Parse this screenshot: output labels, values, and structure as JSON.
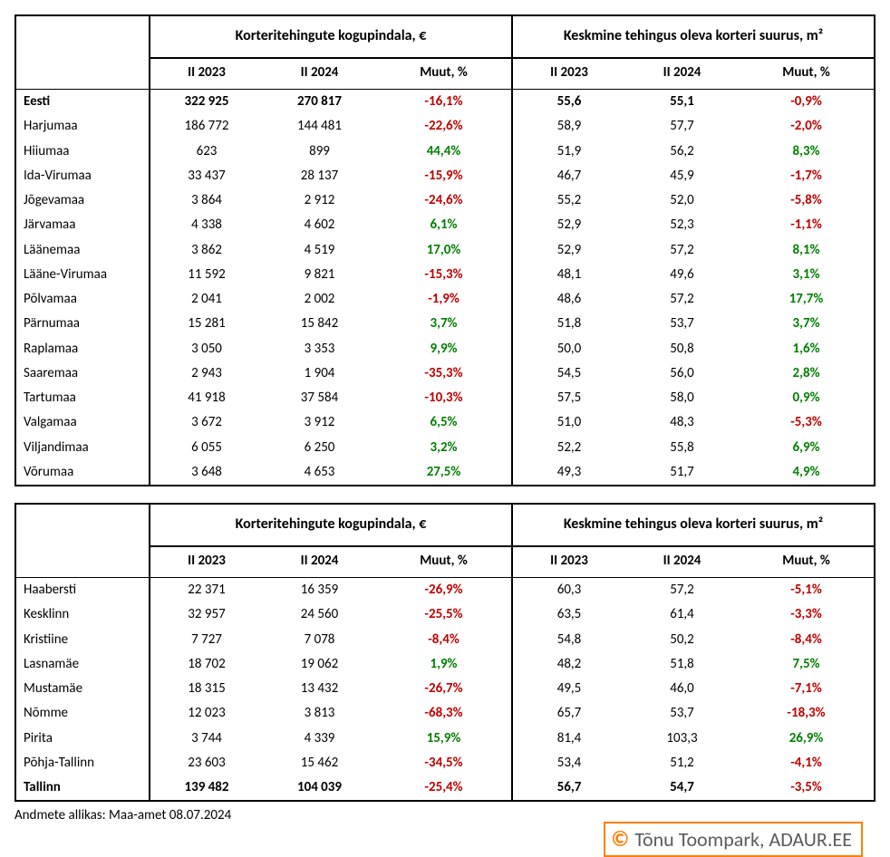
{
  "headers": {
    "group_area": "Korteritehingute kogupindala, €",
    "group_size": "Keskmine tehingus oleva korteri suurus, m²",
    "col_y1": "II 2023",
    "col_y2": "II 2024",
    "col_chg": "Muut, %"
  },
  "colors": {
    "neg": "#c00000",
    "pos": "#008000",
    "border": "#000000",
    "credit_border": "#ff7f00",
    "credit_text": "#5b5b5b"
  },
  "table1": {
    "rows": [
      {
        "label": "Eesti",
        "a1": "322 925",
        "a2": "270 817",
        "ac": "-16,1%",
        "as": "neg",
        "s1": "55,6",
        "s2": "55,1",
        "sc": "-0,9%",
        "ss": "neg",
        "bold": true
      },
      {
        "label": "Harjumaa",
        "a1": "186 772",
        "a2": "144 481",
        "ac": "-22,6%",
        "as": "neg",
        "s1": "58,9",
        "s2": "57,7",
        "sc": "-2,0%",
        "ss": "neg"
      },
      {
        "label": "Hiiumaa",
        "a1": "623",
        "a2": "899",
        "ac": "44,4%",
        "as": "pos",
        "s1": "51,9",
        "s2": "56,2",
        "sc": "8,3%",
        "ss": "pos"
      },
      {
        "label": "Ida-Virumaa",
        "a1": "33 437",
        "a2": "28 137",
        "ac": "-15,9%",
        "as": "neg",
        "s1": "46,7",
        "s2": "45,9",
        "sc": "-1,7%",
        "ss": "neg"
      },
      {
        "label": "Jõgevamaa",
        "a1": "3 864",
        "a2": "2 912",
        "ac": "-24,6%",
        "as": "neg",
        "s1": "55,2",
        "s2": "52,0",
        "sc": "-5,8%",
        "ss": "neg"
      },
      {
        "label": "Järvamaa",
        "a1": "4 338",
        "a2": "4 602",
        "ac": "6,1%",
        "as": "pos",
        "s1": "52,9",
        "s2": "52,3",
        "sc": "-1,1%",
        "ss": "neg"
      },
      {
        "label": "Läänemaa",
        "a1": "3 862",
        "a2": "4 519",
        "ac": "17,0%",
        "as": "pos",
        "s1": "52,9",
        "s2": "57,2",
        "sc": "8,1%",
        "ss": "pos"
      },
      {
        "label": "Lääne-Virumaa",
        "a1": "11 592",
        "a2": "9 821",
        "ac": "-15,3%",
        "as": "neg",
        "s1": "48,1",
        "s2": "49,6",
        "sc": "3,1%",
        "ss": "pos"
      },
      {
        "label": "Põlvamaa",
        "a1": "2 041",
        "a2": "2 002",
        "ac": "-1,9%",
        "as": "neg",
        "s1": "48,6",
        "s2": "57,2",
        "sc": "17,7%",
        "ss": "pos"
      },
      {
        "label": "Pärnumaa",
        "a1": "15 281",
        "a2": "15 842",
        "ac": "3,7%",
        "as": "pos",
        "s1": "51,8",
        "s2": "53,7",
        "sc": "3,7%",
        "ss": "pos"
      },
      {
        "label": "Raplamaa",
        "a1": "3 050",
        "a2": "3 353",
        "ac": "9,9%",
        "as": "pos",
        "s1": "50,0",
        "s2": "50,8",
        "sc": "1,6%",
        "ss": "pos"
      },
      {
        "label": "Saaremaa",
        "a1": "2 943",
        "a2": "1 904",
        "ac": "-35,3%",
        "as": "neg",
        "s1": "54,5",
        "s2": "56,0",
        "sc": "2,8%",
        "ss": "pos"
      },
      {
        "label": "Tartumaa",
        "a1": "41 918",
        "a2": "37 584",
        "ac": "-10,3%",
        "as": "neg",
        "s1": "57,5",
        "s2": "58,0",
        "sc": "0,9%",
        "ss": "pos"
      },
      {
        "label": "Valgamaa",
        "a1": "3 672",
        "a2": "3 912",
        "ac": "6,5%",
        "as": "pos",
        "s1": "51,0",
        "s2": "48,3",
        "sc": "-5,3%",
        "ss": "neg"
      },
      {
        "label": "Viljandimaa",
        "a1": "6 055",
        "a2": "6 250",
        "ac": "3,2%",
        "as": "pos",
        "s1": "52,2",
        "s2": "55,8",
        "sc": "6,9%",
        "ss": "pos"
      },
      {
        "label": "Võrumaa",
        "a1": "3 648",
        "a2": "4 653",
        "ac": "27,5%",
        "as": "pos",
        "s1": "49,3",
        "s2": "51,7",
        "sc": "4,9%",
        "ss": "pos"
      }
    ]
  },
  "table2": {
    "rows": [
      {
        "label": "Haabersti",
        "a1": "22 371",
        "a2": "16 359",
        "ac": "-26,9%",
        "as": "neg",
        "s1": "60,3",
        "s2": "57,2",
        "sc": "-5,1%",
        "ss": "neg"
      },
      {
        "label": "Kesklinn",
        "a1": "32 957",
        "a2": "24 560",
        "ac": "-25,5%",
        "as": "neg",
        "s1": "63,5",
        "s2": "61,4",
        "sc": "-3,3%",
        "ss": "neg"
      },
      {
        "label": "Kristiine",
        "a1": "7 727",
        "a2": "7 078",
        "ac": "-8,4%",
        "as": "neg",
        "s1": "54,8",
        "s2": "50,2",
        "sc": "-8,4%",
        "ss": "neg"
      },
      {
        "label": "Lasnamäe",
        "a1": "18 702",
        "a2": "19 062",
        "ac": "1,9%",
        "as": "pos",
        "s1": "48,2",
        "s2": "51,8",
        "sc": "7,5%",
        "ss": "pos"
      },
      {
        "label": "Mustamäe",
        "a1": "18 315",
        "a2": "13 432",
        "ac": "-26,7%",
        "as": "neg",
        "s1": "49,5",
        "s2": "46,0",
        "sc": "-7,1%",
        "ss": "neg"
      },
      {
        "label": "Nõmme",
        "a1": "12 023",
        "a2": "3 813",
        "ac": "-68,3%",
        "as": "neg",
        "s1": "65,7",
        "s2": "53,7",
        "sc": "-18,3%",
        "ss": "neg"
      },
      {
        "label": "Pirita",
        "a1": "3 744",
        "a2": "4 339",
        "ac": "15,9%",
        "as": "pos",
        "s1": "81,4",
        "s2": "103,3",
        "sc": "26,9%",
        "ss": "pos"
      },
      {
        "label": "Põhja-Tallinn",
        "a1": "23 603",
        "a2": "15 462",
        "ac": "-34,5%",
        "as": "neg",
        "s1": "53,4",
        "s2": "51,2",
        "sc": "-4,1%",
        "ss": "neg"
      },
      {
        "label": "Tallinn",
        "a1": "139 482",
        "a2": "104 039",
        "ac": "-25,4%",
        "as": "neg",
        "s1": "56,7",
        "s2": "54,7",
        "sc": "-3,5%",
        "ss": "neg",
        "bold": true
      }
    ]
  },
  "source_text": "Andmete allikas: Maa-amet 08.07.2024",
  "credit_text": "Tõnu Toompark, ADAUR.EE",
  "credit_symbol": "©"
}
